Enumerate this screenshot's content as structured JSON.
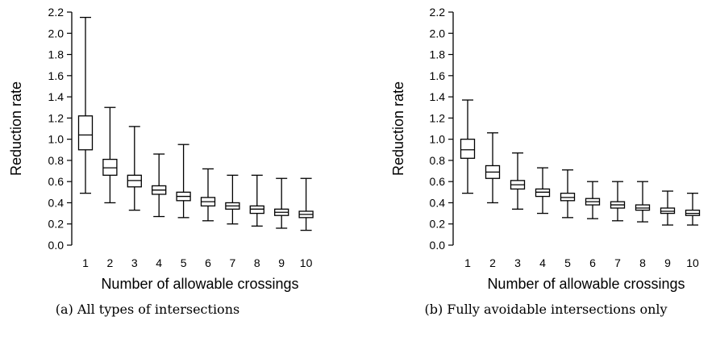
{
  "chart_data": [
    {
      "type": "box",
      "caption": "(a) All types of intersections",
      "xlabel": "Number of allowable crossings",
      "ylabel": "Reduction rate",
      "ylim": [
        0.0,
        2.2
      ],
      "yticks": [
        "0.0",
        "0.2",
        "0.4",
        "0.6",
        "0.8",
        "1.0",
        "1.2",
        "1.4",
        "1.6",
        "1.8",
        "2.0",
        "2.2"
      ],
      "categories": [
        "1",
        "2",
        "3",
        "4",
        "5",
        "6",
        "7",
        "8",
        "9",
        "10"
      ],
      "boxes": [
        {
          "min": 0.49,
          "q1": 0.9,
          "median": 1.04,
          "q3": 1.22,
          "max": 2.15
        },
        {
          "min": 0.4,
          "q1": 0.66,
          "median": 0.73,
          "q3": 0.81,
          "max": 1.3
        },
        {
          "min": 0.33,
          "q1": 0.55,
          "median": 0.61,
          "q3": 0.66,
          "max": 1.12
        },
        {
          "min": 0.27,
          "q1": 0.48,
          "median": 0.52,
          "q3": 0.56,
          "max": 0.86
        },
        {
          "min": 0.26,
          "q1": 0.42,
          "median": 0.46,
          "q3": 0.5,
          "max": 0.95
        },
        {
          "min": 0.23,
          "q1": 0.37,
          "median": 0.41,
          "q3": 0.45,
          "max": 0.72
        },
        {
          "min": 0.2,
          "q1": 0.34,
          "median": 0.37,
          "q3": 0.4,
          "max": 0.66
        },
        {
          "min": 0.18,
          "q1": 0.3,
          "median": 0.34,
          "q3": 0.37,
          "max": 0.66
        },
        {
          "min": 0.16,
          "q1": 0.28,
          "median": 0.31,
          "q3": 0.34,
          "max": 0.63
        },
        {
          "min": 0.14,
          "q1": 0.26,
          "median": 0.29,
          "q3": 0.32,
          "max": 0.63
        }
      ]
    },
    {
      "type": "box",
      "caption": "(b) Fully avoidable intersections only",
      "xlabel": "Number of allowable crossings",
      "ylabel": "Reduction rate",
      "ylim": [
        0.0,
        2.2
      ],
      "yticks": [
        "0.0",
        "0.2",
        "0.4",
        "0.6",
        "0.8",
        "1.0",
        "1.2",
        "1.4",
        "1.6",
        "1.8",
        "2.0",
        "2.2"
      ],
      "categories": [
        "1",
        "2",
        "3",
        "4",
        "5",
        "6",
        "7",
        "8",
        "9",
        "10"
      ],
      "boxes": [
        {
          "min": 0.49,
          "q1": 0.82,
          "median": 0.9,
          "q3": 1.0,
          "max": 1.37
        },
        {
          "min": 0.4,
          "q1": 0.63,
          "median": 0.69,
          "q3": 0.75,
          "max": 1.06
        },
        {
          "min": 0.34,
          "q1": 0.53,
          "median": 0.57,
          "q3": 0.61,
          "max": 0.87
        },
        {
          "min": 0.3,
          "q1": 0.46,
          "median": 0.5,
          "q3": 0.53,
          "max": 0.73
        },
        {
          "min": 0.26,
          "q1": 0.42,
          "median": 0.45,
          "q3": 0.49,
          "max": 0.71
        },
        {
          "min": 0.25,
          "q1": 0.38,
          "median": 0.41,
          "q3": 0.44,
          "max": 0.6
        },
        {
          "min": 0.23,
          "q1": 0.35,
          "median": 0.38,
          "q3": 0.41,
          "max": 0.6
        },
        {
          "min": 0.22,
          "q1": 0.33,
          "median": 0.35,
          "q3": 0.38,
          "max": 0.6
        },
        {
          "min": 0.19,
          "q1": 0.3,
          "median": 0.32,
          "q3": 0.35,
          "max": 0.51
        },
        {
          "min": 0.19,
          "q1": 0.28,
          "median": 0.3,
          "q3": 0.33,
          "max": 0.49
        }
      ]
    }
  ]
}
